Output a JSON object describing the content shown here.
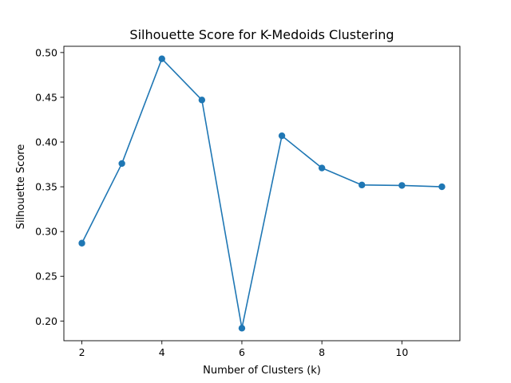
{
  "chart_data": {
    "type": "line",
    "title": "Silhouette Score for K-Medoids Clustering",
    "xlabel": "Number of Clusters (k)",
    "ylabel": "Silhouette Score",
    "xlim": [
      1.55,
      11.45
    ],
    "ylim": [
      0.178,
      0.507
    ],
    "xticks": [
      2,
      4,
      6,
      8,
      10
    ],
    "yticks": [
      0.2,
      0.25,
      0.3,
      0.35,
      0.4,
      0.45,
      0.5
    ],
    "ytick_labels": [
      "0.20",
      "0.25",
      "0.30",
      "0.35",
      "0.40",
      "0.45",
      "0.50"
    ],
    "grid": false,
    "series": [
      {
        "color": "#1f77b4",
        "marker": "circle",
        "x": [
          2,
          3,
          4,
          5,
          6,
          7,
          8,
          9,
          10,
          11
        ],
        "y": [
          0.287,
          0.376,
          0.493,
          0.447,
          0.192,
          0.407,
          0.371,
          0.352,
          0.3515,
          0.35
        ]
      }
    ]
  }
}
